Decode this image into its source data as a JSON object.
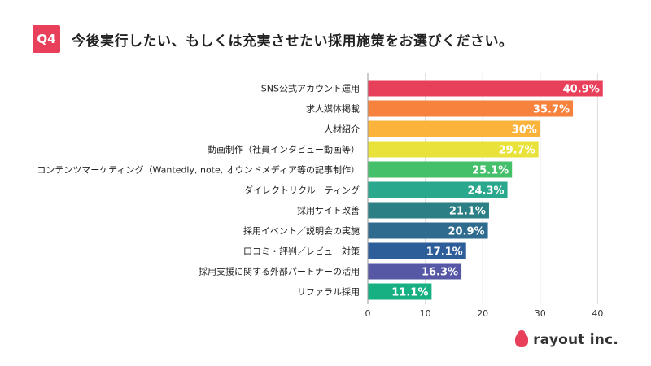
{
  "header": {
    "badge": "Q4",
    "title": "今後実行したい、もしくは充実させたい採用施策をお選びください。"
  },
  "logo": {
    "text": "rayout inc."
  },
  "chart_data": {
    "type": "bar",
    "orientation": "horizontal",
    "categories": [
      "SNS公式アカウント運用",
      "求人媒体掲載",
      "人材紹介",
      "動画制作（社員インタビュー動画等）",
      "コンテンツマーケティング（Wantedly, note, オウンドメディア等の記事制作）",
      "ダイレクトリクルーティング",
      "採用サイト改善",
      "採用イベント／説明会の実施",
      "口コミ・評判／レビュー対策",
      "採用支援に関する外部パートナーの活用",
      "リファラル採用"
    ],
    "values": [
      40.9,
      35.7,
      30,
      29.7,
      25.1,
      24.3,
      21.1,
      20.9,
      17.1,
      16.3,
      11.1
    ],
    "labels": [
      "40.9%",
      "35.7%",
      "30%",
      "29.7%",
      "25.1%",
      "24.3%",
      "21.1%",
      "20.9%",
      "17.1%",
      "16.3%",
      "11.1%"
    ],
    "colors": [
      "#e8405b",
      "#f6823e",
      "#fbb33c",
      "#e9e23a",
      "#45c06a",
      "#2aa88e",
      "#2c7f84",
      "#2f6b8e",
      "#2e5e9a",
      "#5658a6",
      "#16b083"
    ],
    "xticks": [
      "0",
      "10",
      "20",
      "30",
      "40"
    ],
    "xlim": [
      0,
      45
    ],
    "grid": true
  }
}
